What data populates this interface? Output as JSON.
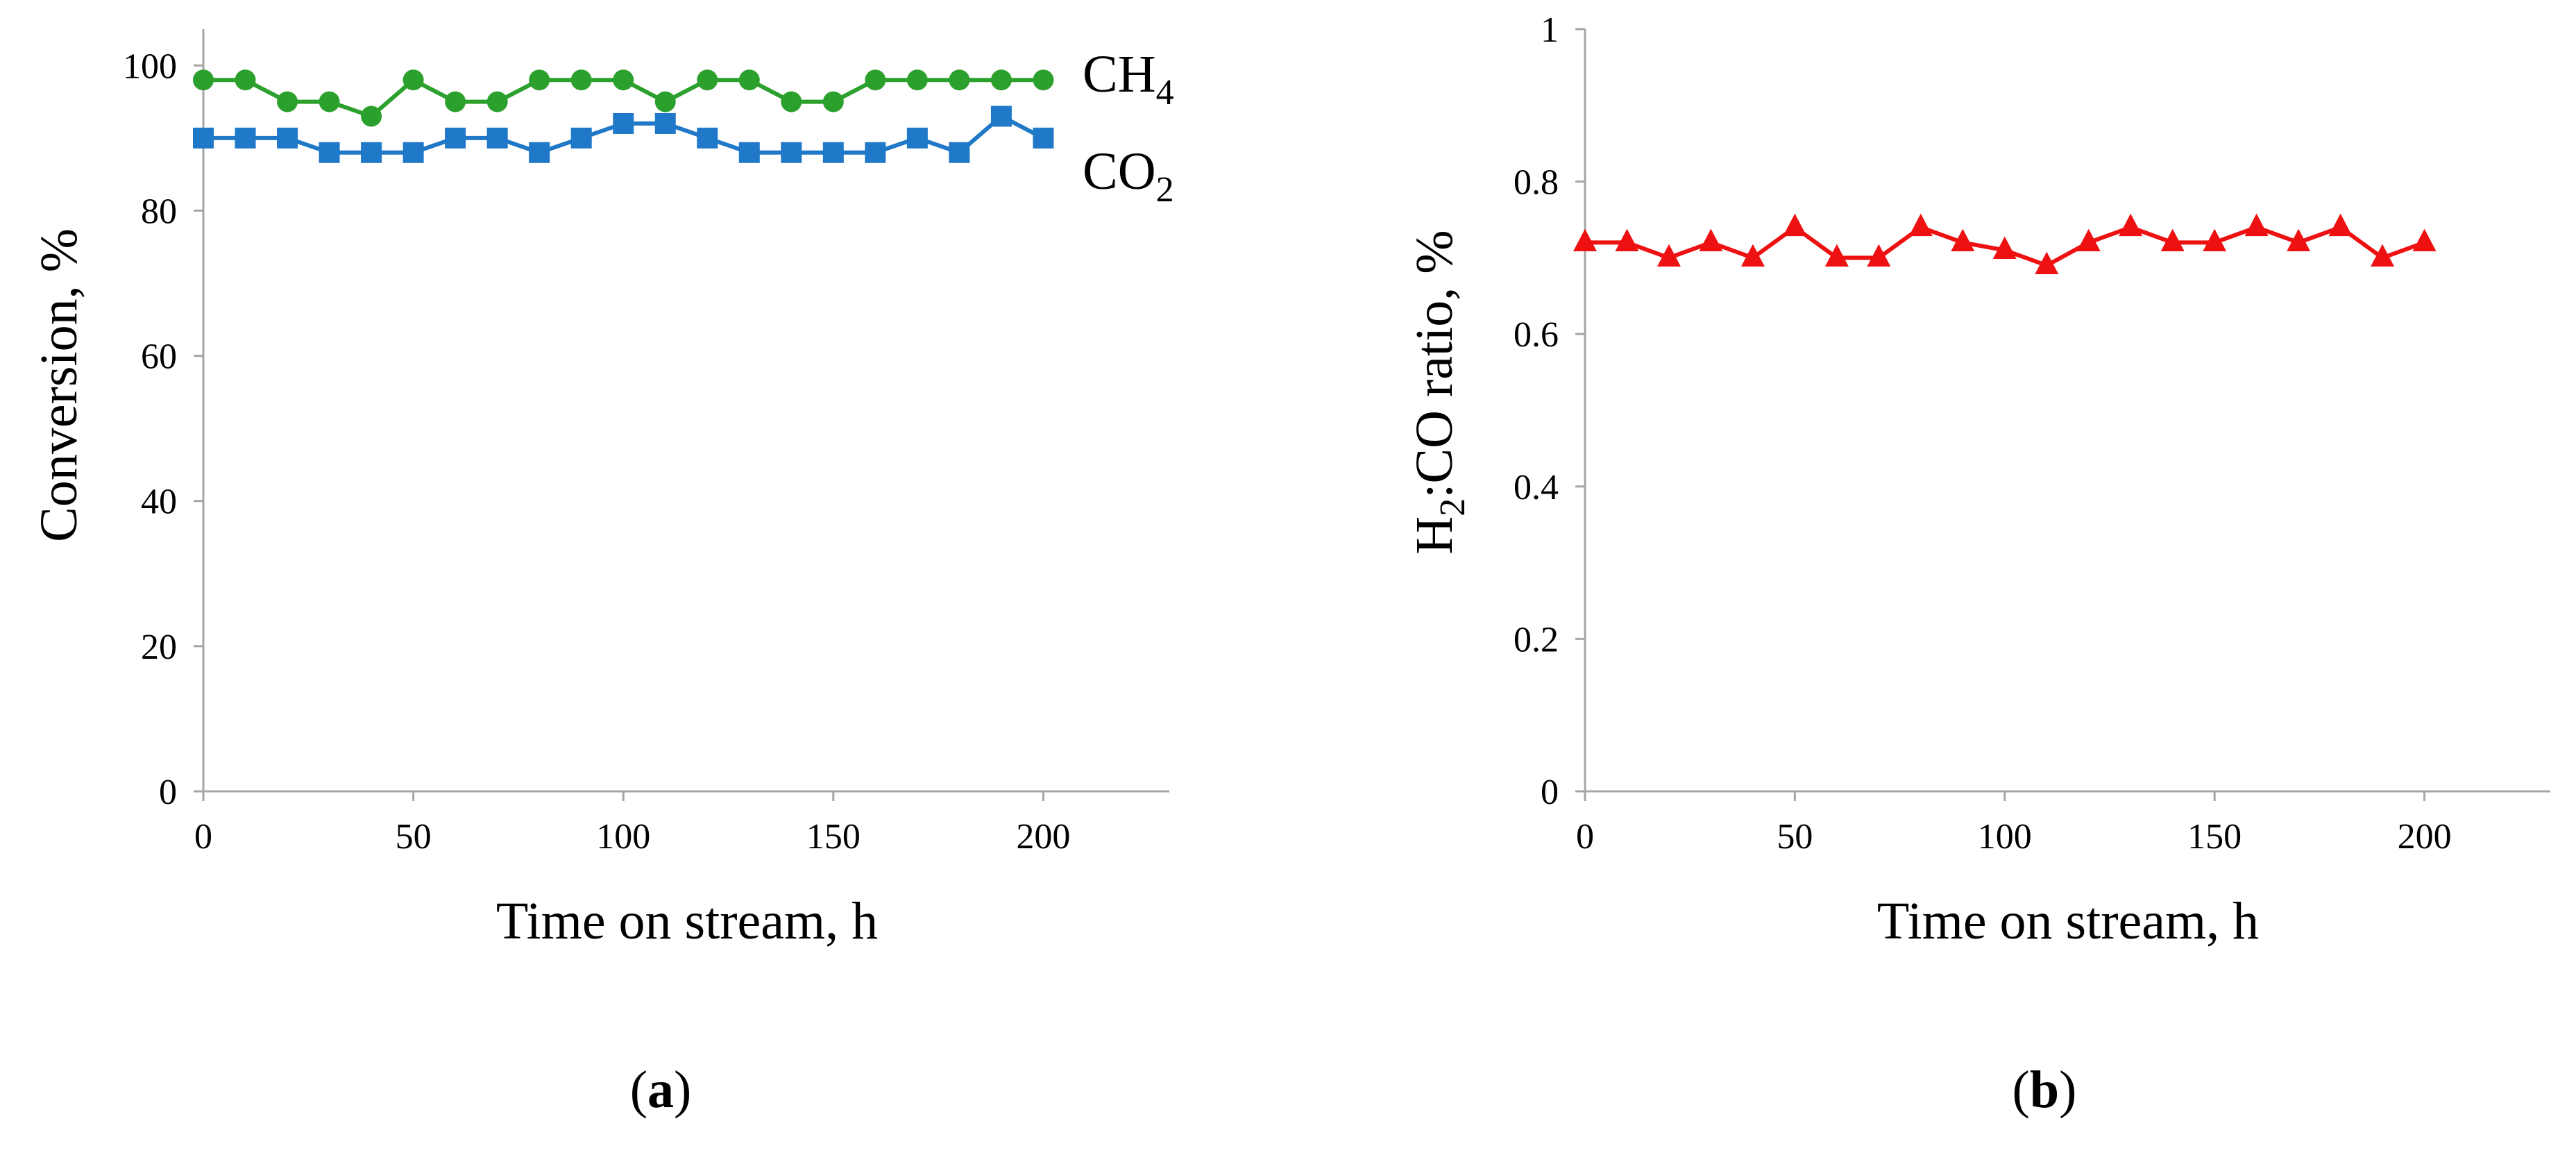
{
  "figure": {
    "panel_a_label": "a",
    "panel_b_label": "b"
  },
  "chart_data": [
    {
      "type": "line",
      "panel": "a",
      "xlabel": "Time on stream, h",
      "ylabel": "Conversion, %",
      "xlim": [
        0,
        230
      ],
      "ylim": [
        0,
        105
      ],
      "xticks": [
        0,
        50,
        100,
        150,
        200
      ],
      "yticks": [
        0,
        20,
        40,
        60,
        80,
        100
      ],
      "grid": false,
      "x": [
        0,
        10,
        20,
        30,
        40,
        50,
        60,
        70,
        80,
        90,
        100,
        110,
        120,
        130,
        140,
        150,
        160,
        170,
        180,
        190,
        200
      ],
      "series": [
        {
          "name": "CH4",
          "label_main": "CH",
          "label_sub": "4",
          "color": "#2ca02c",
          "marker": "circle",
          "values": [
            98,
            98,
            95,
            95,
            93,
            98,
            95,
            95,
            98,
            98,
            98,
            95,
            98,
            98,
            95,
            95,
            98,
            98,
            98,
            98,
            98
          ]
        },
        {
          "name": "CO2",
          "label_main": "CO",
          "label_sub": "2",
          "color": "#1f78c8",
          "marker": "square",
          "values": [
            90,
            90,
            90,
            88,
            88,
            88,
            90,
            90,
            88,
            90,
            92,
            92,
            90,
            88,
            88,
            88,
            88,
            90,
            88,
            93,
            90
          ]
        }
      ]
    },
    {
      "type": "line",
      "panel": "b",
      "xlabel": "Time on stream, h",
      "ylabel_parts": [
        "H",
        "2",
        ":CO ratio, %"
      ],
      "xlim": [
        0,
        230
      ],
      "ylim": [
        0,
        1
      ],
      "xticks": [
        0,
        50,
        100,
        150,
        200
      ],
      "yticks": [
        0,
        0.2,
        0.4,
        0.6,
        0.8,
        1
      ],
      "grid": false,
      "x": [
        0,
        10,
        20,
        30,
        40,
        50,
        60,
        70,
        80,
        90,
        100,
        110,
        120,
        130,
        140,
        150,
        160,
        170,
        180,
        190,
        200
      ],
      "series": [
        {
          "name": "H2:CO",
          "color": "#ee1111",
          "marker": "triangle",
          "values": [
            0.72,
            0.72,
            0.7,
            0.72,
            0.7,
            0.74,
            0.7,
            0.7,
            0.74,
            0.72,
            0.71,
            0.69,
            0.72,
            0.74,
            0.72,
            0.72,
            0.74,
            0.72,
            0.74,
            0.7,
            0.72
          ]
        }
      ]
    }
  ]
}
